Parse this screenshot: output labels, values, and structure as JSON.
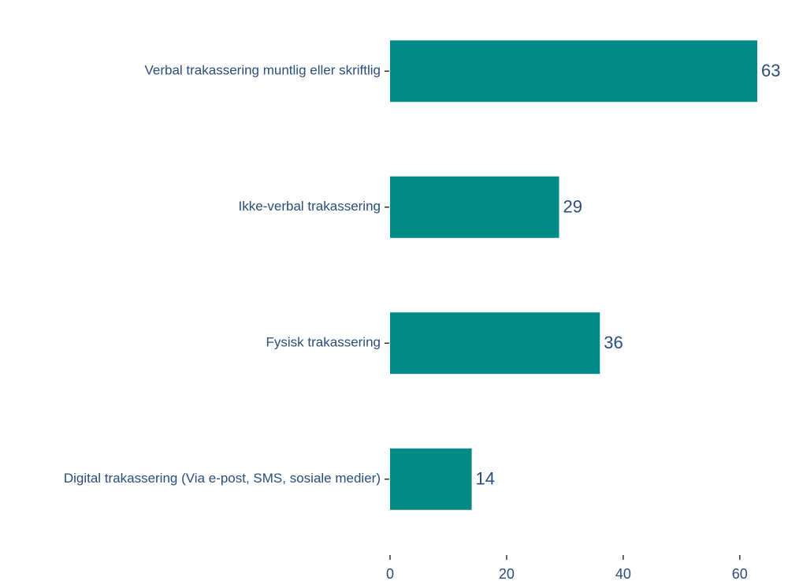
{
  "chart_data": {
    "type": "bar",
    "orientation": "horizontal",
    "categories": [
      "Verbal trakassering muntlig eller skriftlig",
      "Ikke-verbal trakassering",
      "Fysisk trakassering",
      "Digital trakassering (Via e-post, SMS, sosiale medier)"
    ],
    "values": [
      63,
      29,
      36,
      14
    ],
    "color": "#008b87",
    "xlim": [
      0,
      68
    ],
    "xticks": [
      0,
      20,
      40,
      60
    ],
    "grid": false
  }
}
